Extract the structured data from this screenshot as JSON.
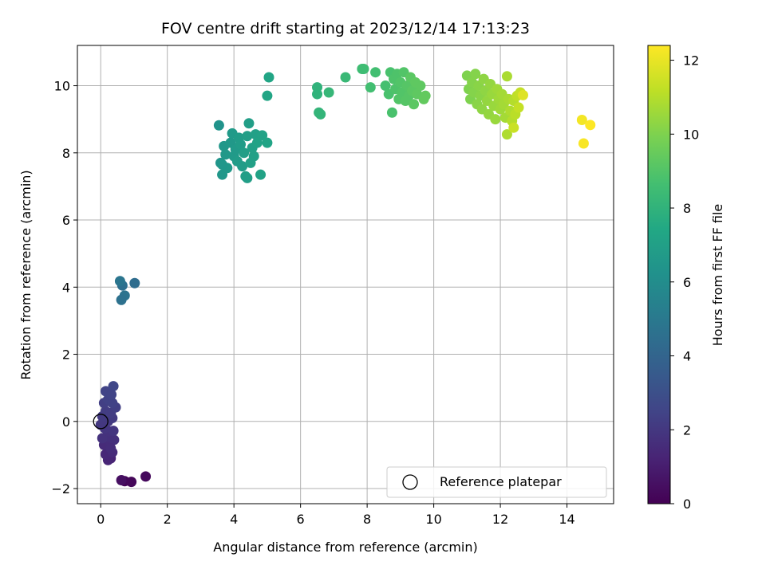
{
  "chart_data": {
    "type": "scatter",
    "title": "FOV centre drift starting at 2023/12/14 17:13:23",
    "xlabel": "Angular distance from reference (arcmin)",
    "ylabel": "Rotation from reference (arcmin)",
    "xlim": [
      -0.7,
      15.4
    ],
    "ylim": [
      -2.45,
      11.2
    ],
    "xticks": [
      0,
      2,
      4,
      6,
      8,
      10,
      12,
      14
    ],
    "yticks": [
      -2,
      0,
      2,
      4,
      6,
      8,
      10
    ],
    "grid": true,
    "legend": {
      "position": "lower-right",
      "entries": [
        "Reference platepar"
      ]
    },
    "reference_point": {
      "x": 0,
      "y": 0,
      "marker": "hollow-circle",
      "label": "Reference platepar"
    },
    "colorbar": {
      "label": "Hours from first FF file",
      "colormap": "viridis",
      "min": 0,
      "max": 12.4,
      "ticks": [
        0,
        2,
        4,
        6,
        8,
        10,
        12
      ]
    },
    "points": [
      [
        0.72,
        -1.78,
        0.1
      ],
      [
        0.92,
        -1.8,
        0.2
      ],
      [
        1.35,
        -1.64,
        0.3
      ],
      [
        0.62,
        -1.75,
        0.5
      ],
      [
        0.3,
        -1.1,
        1.2
      ],
      [
        0.22,
        -1.15,
        1.3
      ],
      [
        0.15,
        -0.98,
        1.4
      ],
      [
        0.35,
        -0.92,
        1.5
      ],
      [
        0.1,
        -0.7,
        1.5
      ],
      [
        0.28,
        -0.6,
        1.6
      ],
      [
        0.4,
        -0.55,
        1.7
      ],
      [
        0.18,
        -0.45,
        1.7
      ],
      [
        0.05,
        -0.5,
        1.8
      ],
      [
        0.25,
        -0.3,
        1.8
      ],
      [
        0.38,
        -0.28,
        1.9
      ],
      [
        0.12,
        -0.2,
        1.9
      ],
      [
        0.0,
        -0.1,
        2.0
      ],
      [
        0.22,
        0.0,
        2.0
      ],
      [
        0.35,
        0.1,
        2.1
      ],
      [
        0.05,
        0.15,
        2.1
      ],
      [
        0.15,
        0.3,
        2.2
      ],
      [
        0.3,
        0.25,
        2.2
      ],
      [
        0.45,
        0.42,
        2.3
      ],
      [
        0.1,
        0.55,
        2.3
      ],
      [
        0.22,
        0.65,
        2.4
      ],
      [
        0.35,
        0.55,
        2.4
      ],
      [
        0.15,
        0.9,
        2.5
      ],
      [
        0.38,
        1.05,
        2.6
      ],
      [
        0.3,
        -0.8,
        1.6
      ],
      [
        0.32,
        0.8,
        2.5
      ],
      [
        0.65,
        4.05,
        4.5
      ],
      [
        0.72,
        3.75,
        4.7
      ],
      [
        0.62,
        3.62,
        4.6
      ],
      [
        0.58,
        4.18,
        4.8
      ],
      [
        1.02,
        4.12,
        4.4
      ],
      [
        3.55,
        8.82,
        6.3
      ],
      [
        3.6,
        7.7,
        6.4
      ],
      [
        3.65,
        7.35,
        6.5
      ],
      [
        3.7,
        8.2,
        6.5
      ],
      [
        3.75,
        7.95,
        6.6
      ],
      [
        3.8,
        7.55,
        6.6
      ],
      [
        3.9,
        8.3,
        6.6
      ],
      [
        3.95,
        8.58,
        6.7
      ],
      [
        4.0,
        7.9,
        6.7
      ],
      [
        4.05,
        8.1,
        6.7
      ],
      [
        4.1,
        7.75,
        6.8
      ],
      [
        4.15,
        8.45,
        6.8
      ],
      [
        4.2,
        8.25,
        6.8
      ],
      [
        4.25,
        7.6,
        6.8
      ],
      [
        4.3,
        8.0,
        6.9
      ],
      [
        4.35,
        7.3,
        6.9
      ],
      [
        4.4,
        8.5,
        6.9
      ],
      [
        4.45,
        8.88,
        6.9
      ],
      [
        4.5,
        7.7,
        7.0
      ],
      [
        4.55,
        8.15,
        7.0
      ],
      [
        4.6,
        7.9,
        7.0
      ],
      [
        4.65,
        8.55,
        7.0
      ],
      [
        4.7,
        8.3,
        7.1
      ],
      [
        4.8,
        7.35,
        7.1
      ],
      [
        4.85,
        8.52,
        7.1
      ],
      [
        5.0,
        8.3,
        7.2
      ],
      [
        5.05,
        10.25,
        7.3
      ],
      [
        5.0,
        9.7,
        7.3
      ],
      [
        4.4,
        7.25,
        6.9
      ],
      [
        3.65,
        7.65,
        6.5
      ],
      [
        6.5,
        9.95,
        8.0
      ],
      [
        6.5,
        9.75,
        8.0
      ],
      [
        6.55,
        9.2,
        8.1
      ],
      [
        6.6,
        9.15,
        8.1
      ],
      [
        6.85,
        9.8,
        8.2
      ],
      [
        7.35,
        10.25,
        8.3
      ],
      [
        7.85,
        10.5,
        8.5
      ],
      [
        8.1,
        9.95,
        8.6
      ],
      [
        8.25,
        10.4,
        8.6
      ],
      [
        8.55,
        10.0,
        8.7
      ],
      [
        8.65,
        9.75,
        8.8
      ],
      [
        8.7,
        10.4,
        8.8
      ],
      [
        8.75,
        9.2,
        8.8
      ],
      [
        8.8,
        10.2,
        8.9
      ],
      [
        8.85,
        9.9,
        8.9
      ],
      [
        8.9,
        10.35,
        8.9
      ],
      [
        8.95,
        9.6,
        9.0
      ],
      [
        9.0,
        10.1,
        9.0
      ],
      [
        9.05,
        9.8,
        9.0
      ],
      [
        9.1,
        10.4,
        9.0
      ],
      [
        9.15,
        9.55,
        9.1
      ],
      [
        9.2,
        10.0,
        9.1
      ],
      [
        9.25,
        9.7,
        9.1
      ],
      [
        9.3,
        10.25,
        9.2
      ],
      [
        9.35,
        9.85,
        9.2
      ],
      [
        9.4,
        9.45,
        9.2
      ],
      [
        9.45,
        10.1,
        9.3
      ],
      [
        9.5,
        9.75,
        9.3
      ],
      [
        9.6,
        10.0,
        9.3
      ],
      [
        9.7,
        9.6,
        9.4
      ],
      [
        9.75,
        9.7,
        9.4
      ],
      [
        7.9,
        10.5,
        8.5
      ],
      [
        11.0,
        10.3,
        10.0
      ],
      [
        11.05,
        9.9,
        10.0
      ],
      [
        11.1,
        9.6,
        10.0
      ],
      [
        11.15,
        10.1,
        10.1
      ],
      [
        11.2,
        9.8,
        10.1
      ],
      [
        11.25,
        10.35,
        10.1
      ],
      [
        11.3,
        9.45,
        10.2
      ],
      [
        11.35,
        10.0,
        10.2
      ],
      [
        11.4,
        9.7,
        10.2
      ],
      [
        11.45,
        9.3,
        10.3
      ],
      [
        11.5,
        10.2,
        10.3
      ],
      [
        11.55,
        9.85,
        10.3
      ],
      [
        11.6,
        9.55,
        10.4
      ],
      [
        11.65,
        9.15,
        10.4
      ],
      [
        11.7,
        10.05,
        10.4
      ],
      [
        11.75,
        9.75,
        10.5
      ],
      [
        11.8,
        9.4,
        10.5
      ],
      [
        11.85,
        9.0,
        10.5
      ],
      [
        11.9,
        9.9,
        10.6
      ],
      [
        11.95,
        9.6,
        10.6
      ],
      [
        12.0,
        9.3,
        10.6
      ],
      [
        12.05,
        9.75,
        10.7
      ],
      [
        12.1,
        9.45,
        10.7
      ],
      [
        12.15,
        9.05,
        10.7
      ],
      [
        12.2,
        10.28,
        10.8
      ],
      [
        12.25,
        9.6,
        10.8
      ],
      [
        12.2,
        8.55,
        10.9
      ],
      [
        12.3,
        9.25,
        10.9
      ],
      [
        12.35,
        8.95,
        11.0
      ],
      [
        12.4,
        9.55,
        11.0
      ],
      [
        12.45,
        9.15,
        11.1
      ],
      [
        12.5,
        9.7,
        11.2
      ],
      [
        12.55,
        9.35,
        11.3
      ],
      [
        12.6,
        9.8,
        11.3
      ],
      [
        12.68,
        9.72,
        11.8
      ],
      [
        12.4,
        8.75,
        11.4
      ],
      [
        14.45,
        8.98,
        12.2
      ],
      [
        14.5,
        8.28,
        12.3
      ],
      [
        14.7,
        8.83,
        12.4
      ]
    ]
  }
}
